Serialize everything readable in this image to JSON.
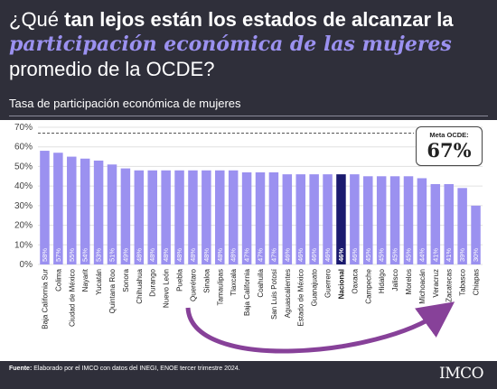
{
  "header": {
    "title_pre": "¿Qué ",
    "title_bold1": "tan lejos están los estados de alcanzar la ",
    "title_hl1": "participación económica de las mujeres",
    "title_post": " promedio de la OCDE?",
    "subtitle": "Tasa de participación económica de mujeres"
  },
  "reference": {
    "label": "Meta OCDE:",
    "value_text": "67%",
    "value": 67
  },
  "footer": {
    "source_label": "Fuente:",
    "source_text": " Elaborado por el IMCO con datos del INEGI, ENOE tercer trimestre 2024.",
    "logo": "IMCO"
  },
  "colors": {
    "bar": "#9b91f0",
    "highlight": "#1a1a6e",
    "arrow": "#7b2d8e",
    "background": "#2f2f3a"
  },
  "chart_data": {
    "type": "bar",
    "title": "Tasa de participación económica de mujeres",
    "ylim": [
      0,
      70
    ],
    "yticks": [
      "0%",
      "10%",
      "20%",
      "30%",
      "40%",
      "50%",
      "60%",
      "70%"
    ],
    "grid": true,
    "highlight_category": "Nacional",
    "categories": [
      "Baja California Sur",
      "Colima",
      "Ciudad de México",
      "Nayarit",
      "Yucatán",
      "Quintana Roo",
      "Sonora",
      "Chihuahua",
      "Durango",
      "Nuevo León",
      "Puebla",
      "Querétaro",
      "Sinaloa",
      "Tamaulipas",
      "Tlaxcala",
      "Baja California",
      "Coahuila",
      "San Luis Potosí",
      "Aguascalientes",
      "Estado de México",
      "Guanajuato",
      "Guerrero",
      "Nacional",
      "Oaxaca",
      "Campeche",
      "Hidalgo",
      "Jalisco",
      "Morelos",
      "Michoacán",
      "Veracruz",
      "Zacatecas",
      "Tabasco",
      "Chiapas"
    ],
    "values": [
      58,
      57,
      55,
      54,
      53,
      51,
      49,
      48,
      48,
      48,
      48,
      48,
      48,
      48,
      48,
      47,
      47,
      47,
      46,
      46,
      46,
      46,
      46,
      46,
      45,
      45,
      45,
      45,
      44,
      41,
      41,
      39,
      30
    ],
    "labels": [
      "58%",
      "57%",
      "55%",
      "54%",
      "53%",
      "51%",
      "49%",
      "48%",
      "48%",
      "48%",
      "48%",
      "48%",
      "48%",
      "48%",
      "48%",
      "47%",
      "47%",
      "47%",
      "46%",
      "46%",
      "46%",
      "46%",
      "46%",
      "46%",
      "45%",
      "45%",
      "45%",
      "45%",
      "44%",
      "41%",
      "41%",
      "39%",
      "30%"
    ],
    "reference_line": 67
  }
}
